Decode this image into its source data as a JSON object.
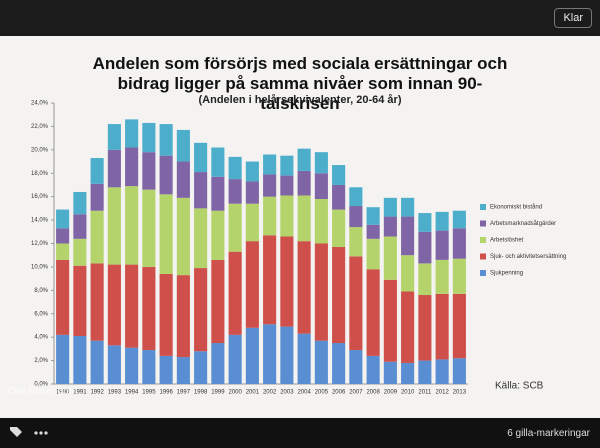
{
  "ui": {
    "close_button": "Klar",
    "likes": "6 gilla-markeringar",
    "watermark": "Olle Rosengren"
  },
  "chart_data": {
    "type": "stacked_bar",
    "title": "Andelen som försörjs med sociala ersättningar och bidrag ligger på samma nivåer som innan 90-talskrisen",
    "subtitle": "(Andelen i helårsekvivalenter, 20-64 år)",
    "note": "Källa: SCB",
    "categories": [
      "1990",
      "1991",
      "1992",
      "1993",
      "1994",
      "1995",
      "1996",
      "1997",
      "1998",
      "1999",
      "2000",
      "2001",
      "2002",
      "2003",
      "2004",
      "2005",
      "2006",
      "2007",
      "2008",
      "2009",
      "2010",
      "2011",
      "2012",
      "2013"
    ],
    "series": [
      {
        "name": "Sjukpenning",
        "color": "#5a8ed2",
        "values": [
          4.2,
          4.1,
          3.7,
          3.3,
          3.1,
          2.9,
          2.4,
          2.3,
          2.8,
          3.5,
          4.2,
          4.8,
          5.1,
          4.9,
          4.3,
          3.7,
          3.5,
          2.9,
          2.4,
          1.9,
          1.8,
          2.0,
          2.1,
          2.2
        ]
      },
      {
        "name": "Sjuk- och aktivitetsersättning",
        "color": "#cf4f4a",
        "values": [
          6.4,
          6.0,
          6.6,
          6.9,
          7.1,
          7.1,
          7.0,
          7.0,
          7.1,
          7.1,
          7.1,
          7.4,
          7.6,
          7.7,
          7.9,
          8.3,
          8.2,
          8.0,
          7.4,
          7.0,
          6.1,
          5.6,
          5.6,
          5.5
        ]
      },
      {
        "name": "Arbetslöshet",
        "color": "#b4d36b",
        "values": [
          1.4,
          2.3,
          4.5,
          6.6,
          6.7,
          6.6,
          6.8,
          6.6,
          5.1,
          4.2,
          4.1,
          3.2,
          3.3,
          3.5,
          3.9,
          3.8,
          3.2,
          2.5,
          2.6,
          3.7,
          3.1,
          2.7,
          2.9,
          3.0
        ]
      },
      {
        "name": "Arbetsmarknadsåtgärder",
        "color": "#7f64a6",
        "values": [
          1.3,
          2.1,
          2.3,
          3.2,
          3.3,
          3.2,
          3.3,
          3.1,
          3.1,
          2.9,
          2.1,
          1.9,
          1.9,
          1.7,
          2.1,
          2.2,
          2.1,
          1.8,
          1.2,
          1.7,
          3.3,
          2.7,
          2.5,
          2.6
        ]
      },
      {
        "name": "Ekonomiskt bistånd",
        "color": "#4caecb",
        "values": [
          1.6,
          1.9,
          2.2,
          2.2,
          2.4,
          2.5,
          2.7,
          2.7,
          2.5,
          2.5,
          1.9,
          1.7,
          1.7,
          1.7,
          1.9,
          1.8,
          1.7,
          1.6,
          1.5,
          1.6,
          1.6,
          1.6,
          1.6,
          1.5
        ]
      }
    ],
    "ylim": [
      0,
      24
    ],
    "yticks": [
      {
        "value": 0,
        "label": "0,0%"
      },
      {
        "value": 2,
        "label": "2,0%"
      },
      {
        "value": 4,
        "label": "4,0%"
      },
      {
        "value": 6,
        "label": "6,0%"
      },
      {
        "value": 8,
        "label": "8,0%"
      },
      {
        "value": 10,
        "label": "10,0%"
      },
      {
        "value": 12,
        "label": "12,0%"
      },
      {
        "value": 14,
        "label": "14,0%"
      },
      {
        "value": 16,
        "label": "16,0%"
      },
      {
        "value": 18,
        "label": "18,0%"
      },
      {
        "value": 20,
        "label": "20,0%"
      },
      {
        "value": 22,
        "label": "22,0%"
      },
      {
        "value": 24,
        "label": "24,0%"
      }
    ],
    "legend": "right"
  }
}
